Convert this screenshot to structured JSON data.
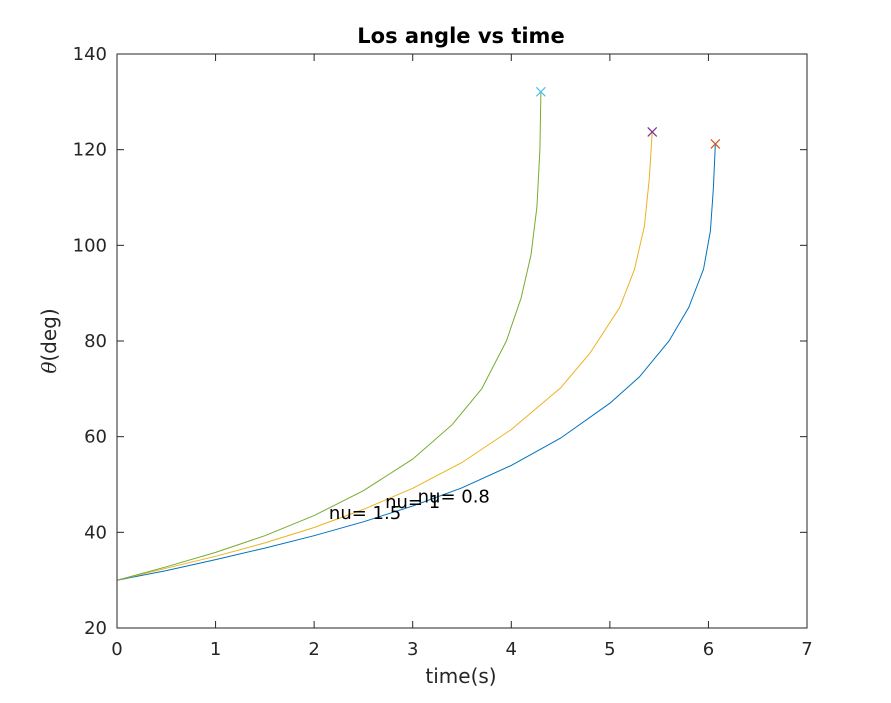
{
  "chart_data": {
    "type": "line",
    "title": "Los angle vs time",
    "xlabel": "time(s)",
    "ylabel_symbol": "θ",
    "ylabel_text": "(deg)",
    "xlim": [
      0,
      7
    ],
    "ylim": [
      20,
      140
    ],
    "xticks": [
      0,
      1,
      2,
      3,
      4,
      5,
      6,
      7
    ],
    "yticks": [
      20,
      40,
      60,
      80,
      100,
      120,
      140
    ],
    "grid": false,
    "series": [
      {
        "color": "#0072BD",
        "points": [
          [
            0,
            30
          ],
          [
            0.5,
            32
          ],
          [
            1,
            34.3
          ],
          [
            1.5,
            36.7
          ],
          [
            2,
            39.3
          ],
          [
            2.5,
            42.2
          ],
          [
            3,
            45.5
          ],
          [
            3.5,
            49.3
          ],
          [
            4,
            54
          ],
          [
            4.5,
            59.7
          ],
          [
            5,
            67
          ],
          [
            5.3,
            72.5
          ],
          [
            5.6,
            80
          ],
          [
            5.8,
            87
          ],
          [
            5.95,
            95
          ],
          [
            6.02,
            103
          ],
          [
            6.05,
            112
          ],
          [
            6.07,
            121
          ]
        ],
        "end_marker": {
          "x": 6.07,
          "y": 121.2,
          "color": "#D95319"
        }
      },
      {
        "color": "#EDB120",
        "points": [
          [
            0,
            30
          ],
          [
            0.5,
            32.5
          ],
          [
            1,
            35
          ],
          [
            1.5,
            37.8
          ],
          [
            2,
            41
          ],
          [
            2.5,
            44.8
          ],
          [
            3,
            49.2
          ],
          [
            3.5,
            54.6
          ],
          [
            4,
            61.5
          ],
          [
            4.5,
            70.2
          ],
          [
            4.8,
            77.5
          ],
          [
            5.1,
            87
          ],
          [
            5.25,
            95
          ],
          [
            5.35,
            104
          ],
          [
            5.4,
            114
          ],
          [
            5.43,
            123.7
          ]
        ],
        "end_marker": {
          "x": 5.43,
          "y": 123.7,
          "color": "#7E2F8E"
        }
      },
      {
        "color": "#77AC30",
        "points": [
          [
            0,
            30
          ],
          [
            0.5,
            32.8
          ],
          [
            1,
            35.8
          ],
          [
            1.5,
            39.3
          ],
          [
            2,
            43.5
          ],
          [
            2.5,
            48.7
          ],
          [
            3,
            55.3
          ],
          [
            3.4,
            62.5
          ],
          [
            3.7,
            70
          ],
          [
            3.95,
            80
          ],
          [
            4.1,
            89
          ],
          [
            4.2,
            98
          ],
          [
            4.26,
            108
          ],
          [
            4.29,
            120
          ],
          [
            4.3,
            132
          ]
        ],
        "end_marker": {
          "x": 4.3,
          "y": 132.1,
          "color": "#4DBEEE"
        }
      }
    ],
    "annotations": [
      {
        "text": "nu= 0.8",
        "x": 3.05,
        "y": 46.2
      },
      {
        "text": "nu= 1",
        "x": 2.72,
        "y": 45.1
      },
      {
        "text": "nu= 1.5",
        "x": 2.15,
        "y": 42.8
      }
    ]
  }
}
